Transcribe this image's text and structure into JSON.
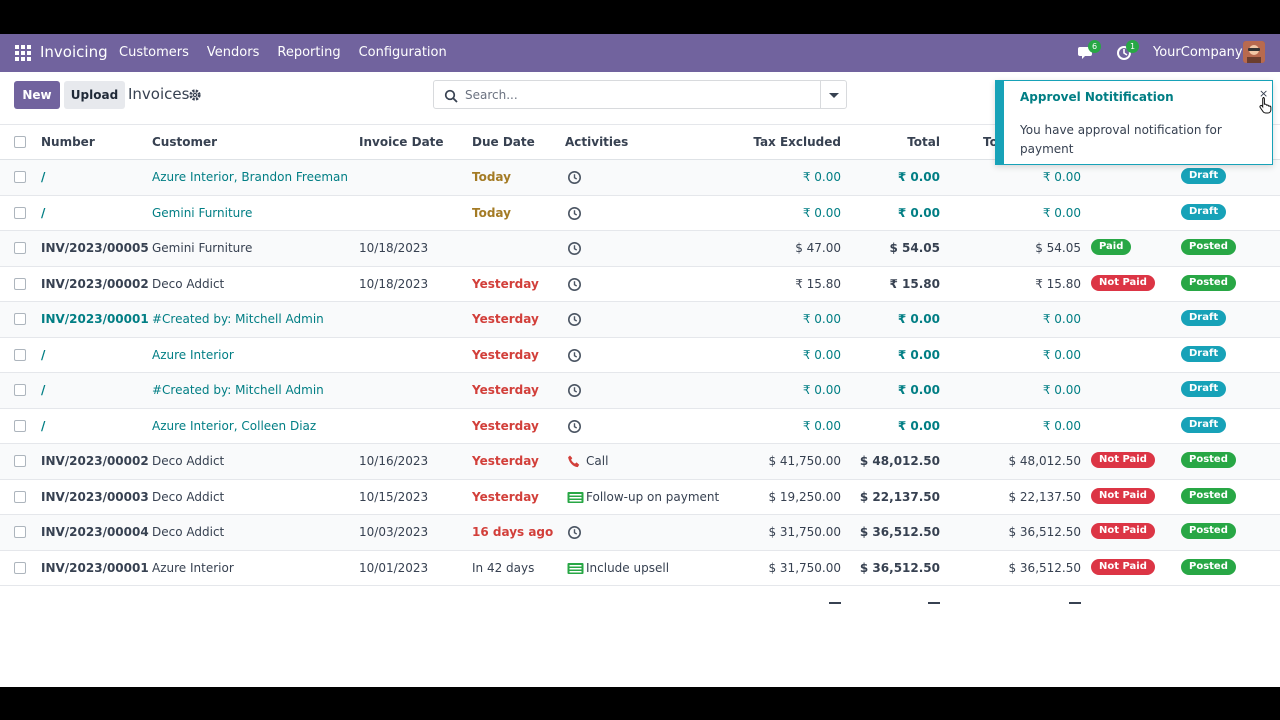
{
  "navbar": {
    "app_name": "Invoicing",
    "menu": [
      "Customers",
      "Vendors",
      "Reporting",
      "Configuration"
    ],
    "messages_count": "6",
    "activities_count": "1",
    "company": "YourCompany"
  },
  "control_panel": {
    "new_label": "New",
    "upload_label": "Upload",
    "breadcrumb": "Invoices",
    "search_placeholder": "Search..."
  },
  "table": {
    "columns": [
      "Number",
      "Customer",
      "Invoice Date",
      "Due Date",
      "Activities",
      "Tax Excluded",
      "Total",
      "To"
    ],
    "rows": [
      {
        "number": "/",
        "customer": "Azure Interior, Brandon Freeman",
        "invoice_date": "",
        "due_date": "Today",
        "activity": "",
        "activity_icon": "clock-icon",
        "tax_excluded": "₹ 0.00",
        "total": "₹ 0.00",
        "total_currency": "₹ 0.00",
        "payment": "",
        "status": "Draft"
      },
      {
        "number": "/",
        "customer": "Gemini Furniture",
        "invoice_date": "",
        "due_date": "Today",
        "activity": "",
        "activity_icon": "clock-icon",
        "tax_excluded": "₹ 0.00",
        "total": "₹ 0.00",
        "total_currency": "₹ 0.00",
        "payment": "",
        "status": "Draft"
      },
      {
        "number": "INV/2023/00005",
        "customer": "Gemini Furniture",
        "invoice_date": "10/18/2023",
        "due_date": "",
        "activity": "",
        "activity_icon": "clock-icon",
        "tax_excluded": "$ 47.00",
        "total": "$ 54.05",
        "total_currency": "$ 54.05",
        "payment": "Paid",
        "status": "Posted"
      },
      {
        "number": "INV/2023/00002",
        "customer": "Deco Addict",
        "invoice_date": "10/18/2023",
        "due_date": "Yesterday",
        "activity": "",
        "activity_icon": "clock-icon",
        "tax_excluded": "₹ 15.80",
        "total": "₹ 15.80",
        "total_currency": "₹ 15.80",
        "payment": "Not Paid",
        "status": "Posted"
      },
      {
        "number": "INV/2023/00001",
        "customer": "#Created by: Mitchell Admin",
        "invoice_date": "",
        "due_date": "Yesterday",
        "activity": "",
        "activity_icon": "clock-icon",
        "tax_excluded": "₹ 0.00",
        "total": "₹ 0.00",
        "total_currency": "₹ 0.00",
        "payment": "",
        "status": "Draft"
      },
      {
        "number": "/",
        "customer": "Azure Interior",
        "invoice_date": "",
        "due_date": "Yesterday",
        "activity": "",
        "activity_icon": "clock-icon",
        "tax_excluded": "₹ 0.00",
        "total": "₹ 0.00",
        "total_currency": "₹ 0.00",
        "payment": "",
        "status": "Draft"
      },
      {
        "number": "/",
        "customer": "#Created by: Mitchell Admin",
        "invoice_date": "",
        "due_date": "Yesterday",
        "activity": "",
        "activity_icon": "clock-icon",
        "tax_excluded": "₹ 0.00",
        "total": "₹ 0.00",
        "total_currency": "₹ 0.00",
        "payment": "",
        "status": "Draft"
      },
      {
        "number": "/",
        "customer": "Azure Interior, Colleen Diaz",
        "invoice_date": "",
        "due_date": "Yesterday",
        "activity": "",
        "activity_icon": "clock-icon",
        "tax_excluded": "₹ 0.00",
        "total": "₹ 0.00",
        "total_currency": "₹ 0.00",
        "payment": "",
        "status": "Draft"
      },
      {
        "number": "INV/2023/00002",
        "customer": "Deco Addict",
        "invoice_date": "10/16/2023",
        "due_date": "Yesterday",
        "activity": "Call",
        "activity_icon": "phone-icon",
        "tax_excluded": "$ 41,750.00",
        "total": "$ 48,012.50",
        "total_currency": "$ 48,012.50",
        "payment": "Not Paid",
        "status": "Posted"
      },
      {
        "number": "INV/2023/00003",
        "customer": "Deco Addict",
        "invoice_date": "10/15/2023",
        "due_date": "Yesterday",
        "activity": "Follow-up on payment",
        "activity_icon": "money-icon",
        "tax_excluded": "$ 19,250.00",
        "total": "$ 22,137.50",
        "total_currency": "$ 22,137.50",
        "payment": "Not Paid",
        "status": "Posted"
      },
      {
        "number": "INV/2023/00004",
        "customer": "Deco Addict",
        "invoice_date": "10/03/2023",
        "due_date": "16 days ago",
        "activity": "",
        "activity_icon": "clock-icon",
        "tax_excluded": "$ 31,750.00",
        "total": "$ 36,512.50",
        "total_currency": "$ 36,512.50",
        "payment": "Not Paid",
        "status": "Posted"
      },
      {
        "number": "INV/2023/00001",
        "customer": "Azure Interior",
        "invoice_date": "10/01/2023",
        "due_date": "In 42 days",
        "activity": "Include upsell",
        "activity_icon": "money-icon",
        "tax_excluded": "$ 31,750.00",
        "total": "$ 36,512.50",
        "total_currency": "$ 36,512.50",
        "payment": "Not Paid",
        "status": "Posted"
      }
    ],
    "footer": [
      "—",
      "—",
      "—"
    ]
  },
  "notification": {
    "title": "Approvel Notitification",
    "close": "×",
    "body": "You have approval notification for payment"
  },
  "colors": {
    "brand": "#71639e",
    "link": "#017e84",
    "draft": "#17a2b8",
    "posted": "#28a745",
    "not_paid": "#dc3545",
    "due_today": "#a47b25",
    "due_late": "#d23f3a"
  }
}
